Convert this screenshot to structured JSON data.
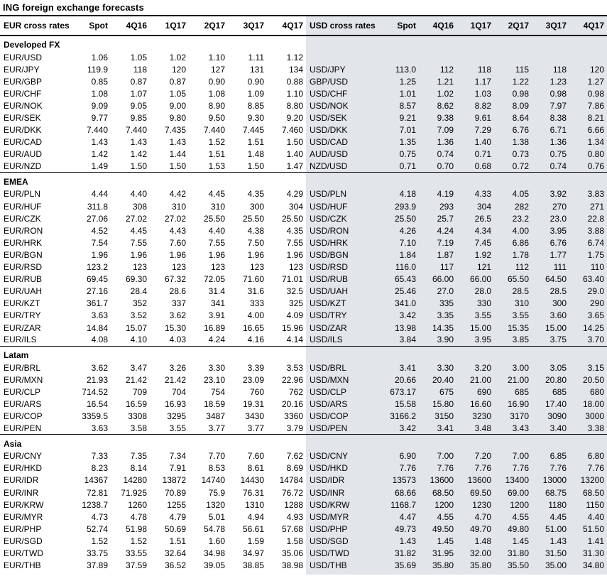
{
  "title": "ING foreign exchange forecasts",
  "columns": [
    "Spot",
    "4Q16",
    "1Q17",
    "2Q17",
    "3Q17",
    "4Q17"
  ],
  "left_table": {
    "header": "EUR cross rates"
  },
  "right_table": {
    "header": "USD cross rates"
  },
  "colors": {
    "right_panel_bg": "#e2e6ea",
    "rule": "#000000",
    "text": "#000000"
  },
  "sections": [
    {
      "name": "Developed FX",
      "rows": [
        {
          "eur": {
            "pair": "EUR/USD",
            "values": [
              "1.06",
              "1.05",
              "1.02",
              "1.10",
              "1.11",
              "1.12"
            ]
          },
          "usd": null
        },
        {
          "eur": {
            "pair": "EUR/JPY",
            "values": [
              "119.9",
              "118",
              "120",
              "127",
              "131",
              "134"
            ]
          },
          "usd": {
            "pair": "USD/JPY",
            "values": [
              "113.0",
              "112",
              "118",
              "115",
              "118",
              "120"
            ]
          }
        },
        {
          "eur": {
            "pair": "EUR/GBP",
            "values": [
              "0.85",
              "0.87",
              "0.87",
              "0.90",
              "0.90",
              "0.88"
            ]
          },
          "usd": {
            "pair": "GBP/USD",
            "values": [
              "1.25",
              "1.21",
              "1.17",
              "1.22",
              "1.23",
              "1.27"
            ]
          }
        },
        {
          "eur": {
            "pair": "EUR/CHF",
            "values": [
              "1.08",
              "1.07",
              "1.05",
              "1.08",
              "1.09",
              "1.10"
            ]
          },
          "usd": {
            "pair": "USD/CHF",
            "values": [
              "1.01",
              "1.02",
              "1.03",
              "0.98",
              "0.98",
              "0.98"
            ]
          }
        },
        {
          "eur": {
            "pair": "EUR/NOK",
            "values": [
              "9.09",
              "9.05",
              "9.00",
              "8.90",
              "8.85",
              "8.80"
            ]
          },
          "usd": {
            "pair": "USD/NOK",
            "values": [
              "8.57",
              "8.62",
              "8.82",
              "8.09",
              "7.97",
              "7.86"
            ]
          }
        },
        {
          "eur": {
            "pair": "EUR/SEK",
            "values": [
              "9.77",
              "9.85",
              "9.80",
              "9.50",
              "9.30",
              "9.20"
            ]
          },
          "usd": {
            "pair": "USD/SEK",
            "values": [
              "9.21",
              "9.38",
              "9.61",
              "8.64",
              "8.38",
              "8.21"
            ]
          }
        },
        {
          "eur": {
            "pair": "EUR/DKK",
            "values": [
              "7.440",
              "7.440",
              "7.435",
              "7.440",
              "7.445",
              "7.460"
            ]
          },
          "usd": {
            "pair": "USD/DKK",
            "values": [
              "7.01",
              "7.09",
              "7.29",
              "6.76",
              "6.71",
              "6.66"
            ]
          }
        },
        {
          "eur": {
            "pair": "EUR/CAD",
            "values": [
              "1.43",
              "1.43",
              "1.43",
              "1.52",
              "1.51",
              "1.50"
            ]
          },
          "usd": {
            "pair": "USD/CAD",
            "values": [
              "1.35",
              "1.36",
              "1.40",
              "1.38",
              "1.36",
              "1.34"
            ]
          }
        },
        {
          "eur": {
            "pair": "EUR/AUD",
            "values": [
              "1.42",
              "1.42",
              "1.44",
              "1.51",
              "1.48",
              "1.40"
            ]
          },
          "usd": {
            "pair": "AUD/USD",
            "values": [
              "0.75",
              "0.74",
              "0.71",
              "0.73",
              "0.75",
              "0.80"
            ]
          }
        },
        {
          "eur": {
            "pair": "EUR/NZD",
            "values": [
              "1.49",
              "1.50",
              "1.50",
              "1.53",
              "1.50",
              "1.47"
            ]
          },
          "usd": {
            "pair": "NZD/USD",
            "values": [
              "0.71",
              "0.70",
              "0.68",
              "0.72",
              "0.74",
              "0.76"
            ]
          }
        }
      ]
    },
    {
      "name": "EMEA",
      "rows": [
        {
          "eur": {
            "pair": "EUR/PLN",
            "values": [
              "4.44",
              "4.40",
              "4.42",
              "4.45",
              "4.35",
              "4.29"
            ]
          },
          "usd": {
            "pair": "USD/PLN",
            "values": [
              "4.18",
              "4.19",
              "4.33",
              "4.05",
              "3.92",
              "3.83"
            ]
          }
        },
        {
          "eur": {
            "pair": "EUR/HUF",
            "values": [
              "311.8",
              "308",
              "310",
              "310",
              "300",
              "304"
            ]
          },
          "usd": {
            "pair": "USD/HUF",
            "values": [
              "293.9",
              "293",
              "304",
              "282",
              "270",
              "271"
            ]
          }
        },
        {
          "eur": {
            "pair": "EUR/CZK",
            "values": [
              "27.06",
              "27.02",
              "27.02",
              "25.50",
              "25.50",
              "25.50"
            ]
          },
          "usd": {
            "pair": "USD/CZK",
            "values": [
              "25.50",
              "25.7",
              "26.5",
              "23.2",
              "23.0",
              "22.8"
            ]
          }
        },
        {
          "eur": {
            "pair": "EUR/RON",
            "values": [
              "4.52",
              "4.45",
              "4.43",
              "4.40",
              "4.38",
              "4.35"
            ]
          },
          "usd": {
            "pair": "USD/RON",
            "values": [
              "4.26",
              "4.24",
              "4.34",
              "4.00",
              "3.95",
              "3.88"
            ]
          }
        },
        {
          "eur": {
            "pair": "EUR/HRK",
            "values": [
              "7.54",
              "7.55",
              "7.60",
              "7.55",
              "7.50",
              "7.55"
            ]
          },
          "usd": {
            "pair": "USD/HRK",
            "values": [
              "7.10",
              "7.19",
              "7.45",
              "6.86",
              "6.76",
              "6.74"
            ]
          }
        },
        {
          "eur": {
            "pair": "EUR/BGN",
            "values": [
              "1.96",
              "1.96",
              "1.96",
              "1.96",
              "1.96",
              "1.96"
            ]
          },
          "usd": {
            "pair": "USD/BGN",
            "values": [
              "1.84",
              "1.87",
              "1.92",
              "1.78",
              "1.77",
              "1.75"
            ]
          }
        },
        {
          "eur": {
            "pair": "EUR/RSD",
            "values": [
              "123.2",
              "123",
              "123",
              "123",
              "123",
              "123"
            ]
          },
          "usd": {
            "pair": "USD/RSD",
            "values": [
              "116.0",
              "117",
              "121",
              "112",
              "111",
              "110"
            ]
          }
        },
        {
          "eur": {
            "pair": "EUR/RUB",
            "values": [
              "69.45",
              "69.30",
              "67.32",
              "72.05",
              "71.60",
              "71.01"
            ]
          },
          "usd": {
            "pair": "USD/RUB",
            "values": [
              "65.43",
              "66.00",
              "66.00",
              "65.50",
              "64.50",
              "63.40"
            ]
          }
        },
        {
          "eur": {
            "pair": "EUR/UAH",
            "values": [
              "27.16",
              "28.4",
              "28.6",
              "31.4",
              "31.6",
              "32.5"
            ]
          },
          "usd": {
            "pair": "USD/UAH",
            "values": [
              "25.46",
              "27.0",
              "28.0",
              "28.5",
              "28.5",
              "29.0"
            ]
          }
        },
        {
          "eur": {
            "pair": "EUR/KZT",
            "values": [
              "361.7",
              "352",
              "337",
              "341",
              "333",
              "325"
            ]
          },
          "usd": {
            "pair": "USD/KZT",
            "values": [
              "341.0",
              "335",
              "330",
              "310",
              "300",
              "290"
            ]
          }
        },
        {
          "eur": {
            "pair": "EUR/TRY",
            "values": [
              "3.63",
              "3.52",
              "3.62",
              "3.91",
              "4.00",
              "4.09"
            ]
          },
          "usd": {
            "pair": "USD/TRY",
            "values": [
              "3.42",
              "3.35",
              "3.55",
              "3.55",
              "3.60",
              "3.65"
            ]
          }
        },
        {
          "eur": {
            "pair": "EUR/ZAR",
            "values": [
              "14.84",
              "15.07",
              "15.30",
              "16.89",
              "16.65",
              "15.96"
            ]
          },
          "usd": {
            "pair": "USD/ZAR",
            "values": [
              "13.98",
              "14.35",
              "15.00",
              "15.35",
              "15.00",
              "14.25"
            ]
          }
        },
        {
          "eur": {
            "pair": "EUR/ILS",
            "values": [
              "4.08",
              "4.10",
              "4.03",
              "4.24",
              "4.16",
              "4.14"
            ]
          },
          "usd": {
            "pair": "USD/ILS",
            "values": [
              "3.84",
              "3.90",
              "3.95",
              "3.85",
              "3.75",
              "3.70"
            ]
          }
        }
      ]
    },
    {
      "name": "Latam",
      "rows": [
        {
          "eur": {
            "pair": "EUR/BRL",
            "values": [
              "3.62",
              "3.47",
              "3.26",
              "3.30",
              "3.39",
              "3.53"
            ]
          },
          "usd": {
            "pair": "USD/BRL",
            "values": [
              "3.41",
              "3.30",
              "3.20",
              "3.00",
              "3.05",
              "3.15"
            ]
          }
        },
        {
          "eur": {
            "pair": "EUR/MXN",
            "values": [
              "21.93",
              "21.42",
              "21.42",
              "23.10",
              "23.09",
              "22.96"
            ]
          },
          "usd": {
            "pair": "USD/MXN",
            "values": [
              "20.66",
              "20.40",
              "21.00",
              "21.00",
              "20.80",
              "20.50"
            ]
          }
        },
        {
          "eur": {
            "pair": "EUR/CLP",
            "values": [
              "714.52",
              "709",
              "704",
              "754",
              "760",
              "762"
            ]
          },
          "usd": {
            "pair": "USD/CLP",
            "values": [
              "673.17",
              "675",
              "690",
              "685",
              "685",
              "680"
            ]
          }
        },
        {
          "eur": {
            "pair": "EUR/ARS",
            "values": [
              "16.54",
              "16.59",
              "16.93",
              "18.59",
              "19.31",
              "20.16"
            ]
          },
          "usd": {
            "pair": "USD/ARS",
            "values": [
              "15.58",
              "15.80",
              "16.60",
              "16.90",
              "17.40",
              "18.00"
            ]
          }
        },
        {
          "eur": {
            "pair": "EUR/COP",
            "values": [
              "3359.5",
              "3308",
              "3295",
              "3487",
              "3430",
              "3360"
            ]
          },
          "usd": {
            "pair": "USD/COP",
            "values": [
              "3166.2",
              "3150",
              "3230",
              "3170",
              "3090",
              "3000"
            ]
          }
        },
        {
          "eur": {
            "pair": "EUR/PEN",
            "values": [
              "3.63",
              "3.58",
              "3.55",
              "3.77",
              "3.77",
              "3.79"
            ]
          },
          "usd": {
            "pair": "USD/PEN",
            "values": [
              "3.42",
              "3.41",
              "3.48",
              "3.43",
              "3.40",
              "3.38"
            ]
          }
        }
      ]
    },
    {
      "name": "Asia",
      "rows": [
        {
          "eur": {
            "pair": "EUR/CNY",
            "values": [
              "7.33",
              "7.35",
              "7.34",
              "7.70",
              "7.60",
              "7.62"
            ]
          },
          "usd": {
            "pair": "USD/CNY",
            "values": [
              "6.90",
              "7.00",
              "7.20",
              "7.00",
              "6.85",
              "6.80"
            ]
          }
        },
        {
          "eur": {
            "pair": "EUR/HKD",
            "values": [
              "8.23",
              "8.14",
              "7.91",
              "8.53",
              "8.61",
              "8.69"
            ]
          },
          "usd": {
            "pair": "USD/HKD",
            "values": [
              "7.76",
              "7.76",
              "7.76",
              "7.76",
              "7.76",
              "7.76"
            ]
          }
        },
        {
          "eur": {
            "pair": "EUR/IDR",
            "values": [
              "14367",
              "14280",
              "13872",
              "14740",
              "14430",
              "14784"
            ]
          },
          "usd": {
            "pair": "USD/IDR",
            "values": [
              "13573",
              "13600",
              "13600",
              "13400",
              "13000",
              "13200"
            ]
          }
        },
        {
          "eur": {
            "pair": "EUR/INR",
            "values": [
              "72.81",
              "71.925",
              "70.89",
              "75.9",
              "76.31",
              "76.72"
            ]
          },
          "usd": {
            "pair": "USD/INR",
            "values": [
              "68.66",
              "68.50",
              "69.50",
              "69.00",
              "68.75",
              "68.50"
            ]
          }
        },
        {
          "eur": {
            "pair": "EUR/KRW",
            "values": [
              "1238.7",
              "1260",
              "1255",
              "1320",
              "1310",
              "1288"
            ]
          },
          "usd": {
            "pair": "USD/KRW",
            "values": [
              "1168.7",
              "1200",
              "1230",
              "1200",
              "1180",
              "1150"
            ]
          }
        },
        {
          "eur": {
            "pair": "EUR/MYR",
            "values": [
              "4.73",
              "4.78",
              "4.79",
              "5.01",
              "4.94",
              "4.93"
            ]
          },
          "usd": {
            "pair": "USD/MYR",
            "values": [
              "4.47",
              "4.55",
              "4.70",
              "4.55",
              "4.45",
              "4.40"
            ]
          }
        },
        {
          "eur": {
            "pair": "EUR/PHP",
            "values": [
              "52.74",
              "51.98",
              "50.69",
              "54.78",
              "56.61",
              "57.68"
            ]
          },
          "usd": {
            "pair": "USD/PHP",
            "values": [
              "49.73",
              "49.50",
              "49.70",
              "49.80",
              "51.00",
              "51.50"
            ]
          }
        },
        {
          "eur": {
            "pair": "EUR/SGD",
            "values": [
              "1.52",
              "1.52",
              "1.51",
              "1.60",
              "1.59",
              "1.58"
            ]
          },
          "usd": {
            "pair": "USD/SGD",
            "values": [
              "1.43",
              "1.45",
              "1.48",
              "1.45",
              "1.43",
              "1.41"
            ]
          }
        },
        {
          "eur": {
            "pair": "EUR/TWD",
            "values": [
              "33.75",
              "33.55",
              "32.64",
              "34.98",
              "34.97",
              "35.06"
            ]
          },
          "usd": {
            "pair": "USD/TWD",
            "values": [
              "31.82",
              "31.95",
              "32.00",
              "31.80",
              "31.50",
              "31.30"
            ]
          }
        },
        {
          "eur": {
            "pair": "EUR/THB",
            "values": [
              "37.89",
              "37.59",
              "36.52",
              "39.05",
              "38.85",
              "38.98"
            ]
          },
          "usd": {
            "pair": "USD/THB",
            "values": [
              "35.69",
              "35.80",
              "35.80",
              "35.50",
              "35.00",
              "34.80"
            ]
          }
        }
      ]
    }
  ]
}
